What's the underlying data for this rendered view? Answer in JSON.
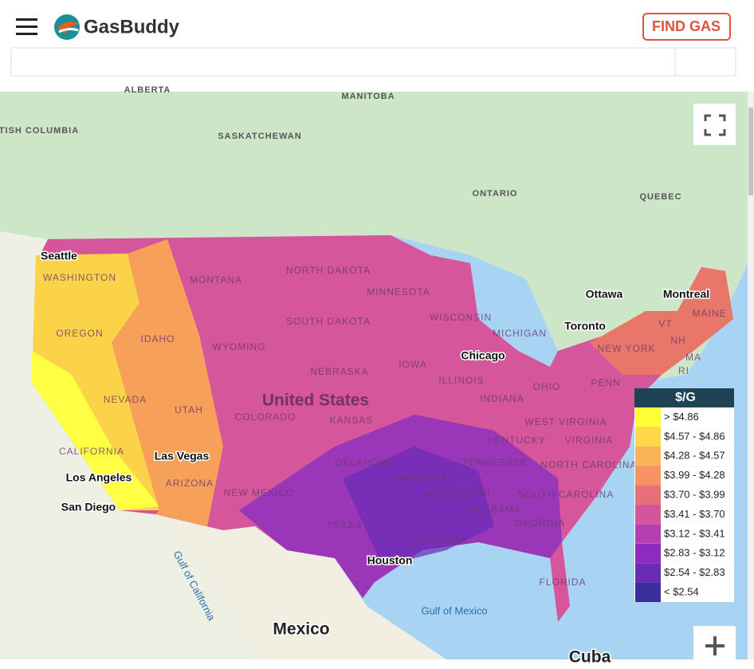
{
  "header": {
    "logo": "GasBuddy",
    "button": "FIND GAS"
  },
  "map": {
    "labels": [
      "ALBERTA",
      "MANITOBA",
      "BRITISH COLUMBIA",
      "SASKATCHEWAN",
      "ONTARIO",
      "QUEBEC",
      "Seattle",
      "WASHINGTON",
      "MONTANA",
      "NORTH DAKOTA",
      "MINNESOTA",
      "Ottawa",
      "Montreal",
      "Toronto",
      "OREGON",
      "IDAHO",
      "WYOMING",
      "SOUTH DAKOTA",
      "WISCONSIN",
      "MICHIGAN",
      "VT",
      "MAINE",
      "NH",
      "NEW YORK",
      "MA",
      "RI",
      "Chicago",
      "IOWA",
      "NEBRASKA",
      "ILLINOIS",
      "OHIO",
      "PENN",
      "NEVADA",
      "UTAH",
      "COLORADO",
      "United States",
      "KANSAS",
      "INDIANA",
      "WEST VIRGINIA",
      "KENTUCKY",
      "VIRGINIA",
      "CALIFORNIA",
      "Las Vegas",
      "OKLAHOMA",
      "TENNESSEE",
      "NORTH CAROLINA",
      "Los Angeles",
      "ARIZONA",
      "NEW MEXICO",
      "ARKANSAS",
      "MISSISSIPPI",
      "SOUTH CAROLINA",
      "San Diego",
      "ALABAMA",
      "GEORGIA",
      "TEXAS",
      "LOUISIANA",
      "Houston",
      "FLORIDA",
      "Gulf of California",
      "Gulf of Mexico",
      "Mexico",
      "Cuba"
    ],
    "legend": {
      "title": "$/G",
      "items": [
        {
          "label": "> $4.86",
          "color": "#ffff33"
        },
        {
          "label": "$4.57 - $4.86",
          "color": "#fdd849"
        },
        {
          "label": "$4.28 - $4.57",
          "color": "#fbb455"
        },
        {
          "label": "$3.99 - $4.28",
          "color": "#f79263"
        },
        {
          "label": "$3.70 - $3.99",
          "color": "#e86f77"
        },
        {
          "label": "$3.41 - $3.70",
          "color": "#d45598"
        },
        {
          "label": "$3.12 - $3.41",
          "color": "#b63fb0"
        },
        {
          "label": "$2.83 - $3.12",
          "color": "#8e2bbf"
        },
        {
          "label": "$2.54 - $2.83",
          "color": "#6a2bb5"
        },
        {
          "label": "< $2.54",
          "color": "#3a2f9a"
        }
      ]
    }
  }
}
